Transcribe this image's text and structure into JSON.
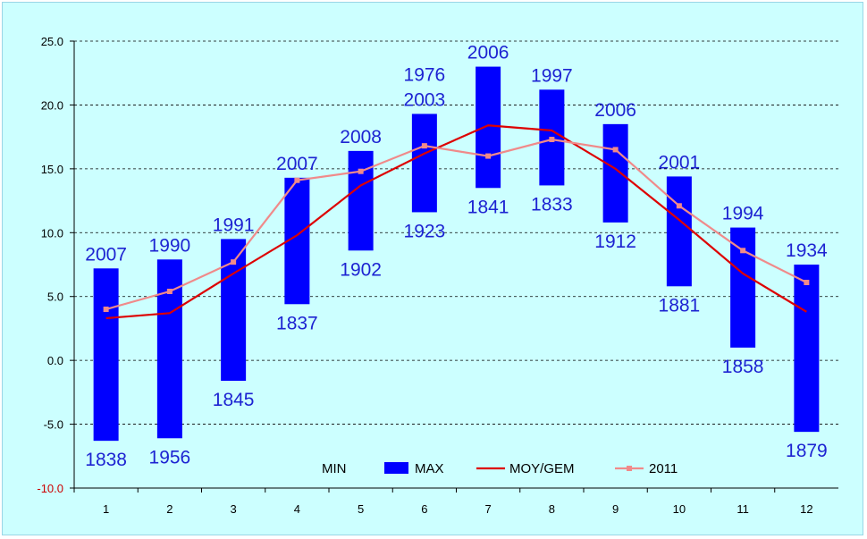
{
  "chart_data": {
    "type": "bar",
    "categories": [
      "1",
      "2",
      "3",
      "4",
      "5",
      "6",
      "7",
      "8",
      "9",
      "10",
      "11",
      "12"
    ],
    "ylim": [
      -10,
      25
    ],
    "yticks": [
      "-10.0",
      "-5.0",
      "0.0",
      "5.0",
      "10.0",
      "15.0",
      "20.0",
      "25.0"
    ],
    "grid": "horizontal-dashed",
    "legend_position": "bottom-center",
    "series": [
      {
        "name": "MIN",
        "values": [
          -6.3,
          -6.1,
          -1.6,
          4.4,
          8.6,
          11.6,
          13.5,
          13.7,
          10.8,
          5.8,
          1.0,
          -5.6
        ],
        "year_labels": [
          "1838",
          "1956",
          "1845",
          "1837",
          "1902",
          "1923",
          "1841",
          "1833",
          "1912",
          "1881",
          "1858",
          "1879"
        ]
      },
      {
        "name": "MAX",
        "values": [
          7.2,
          7.9,
          9.5,
          14.3,
          16.4,
          19.3,
          23.0,
          21.2,
          18.5,
          14.4,
          10.4,
          7.5
        ],
        "year_labels": [
          "2007",
          "1990",
          "1991",
          "2007",
          "2008",
          "2003",
          "2006",
          "1997",
          "2006",
          "2001",
          "1994",
          "1934"
        ],
        "color": "#0000ff"
      },
      {
        "name": "MOY/GEM",
        "values": [
          3.3,
          3.7,
          6.8,
          9.8,
          13.7,
          16.2,
          18.4,
          18.0,
          15.0,
          11.0,
          6.8,
          3.8
        ],
        "color": "#dd0000"
      },
      {
        "name": "2011",
        "values": [
          4.0,
          5.4,
          7.7,
          14.1,
          14.8,
          16.8,
          16.0,
          17.3,
          16.5,
          12.1,
          8.6,
          6.1
        ],
        "color": "#f08a8a"
      }
    ],
    "extra_labels": [
      {
        "category": "6",
        "text": "1976"
      }
    ]
  }
}
